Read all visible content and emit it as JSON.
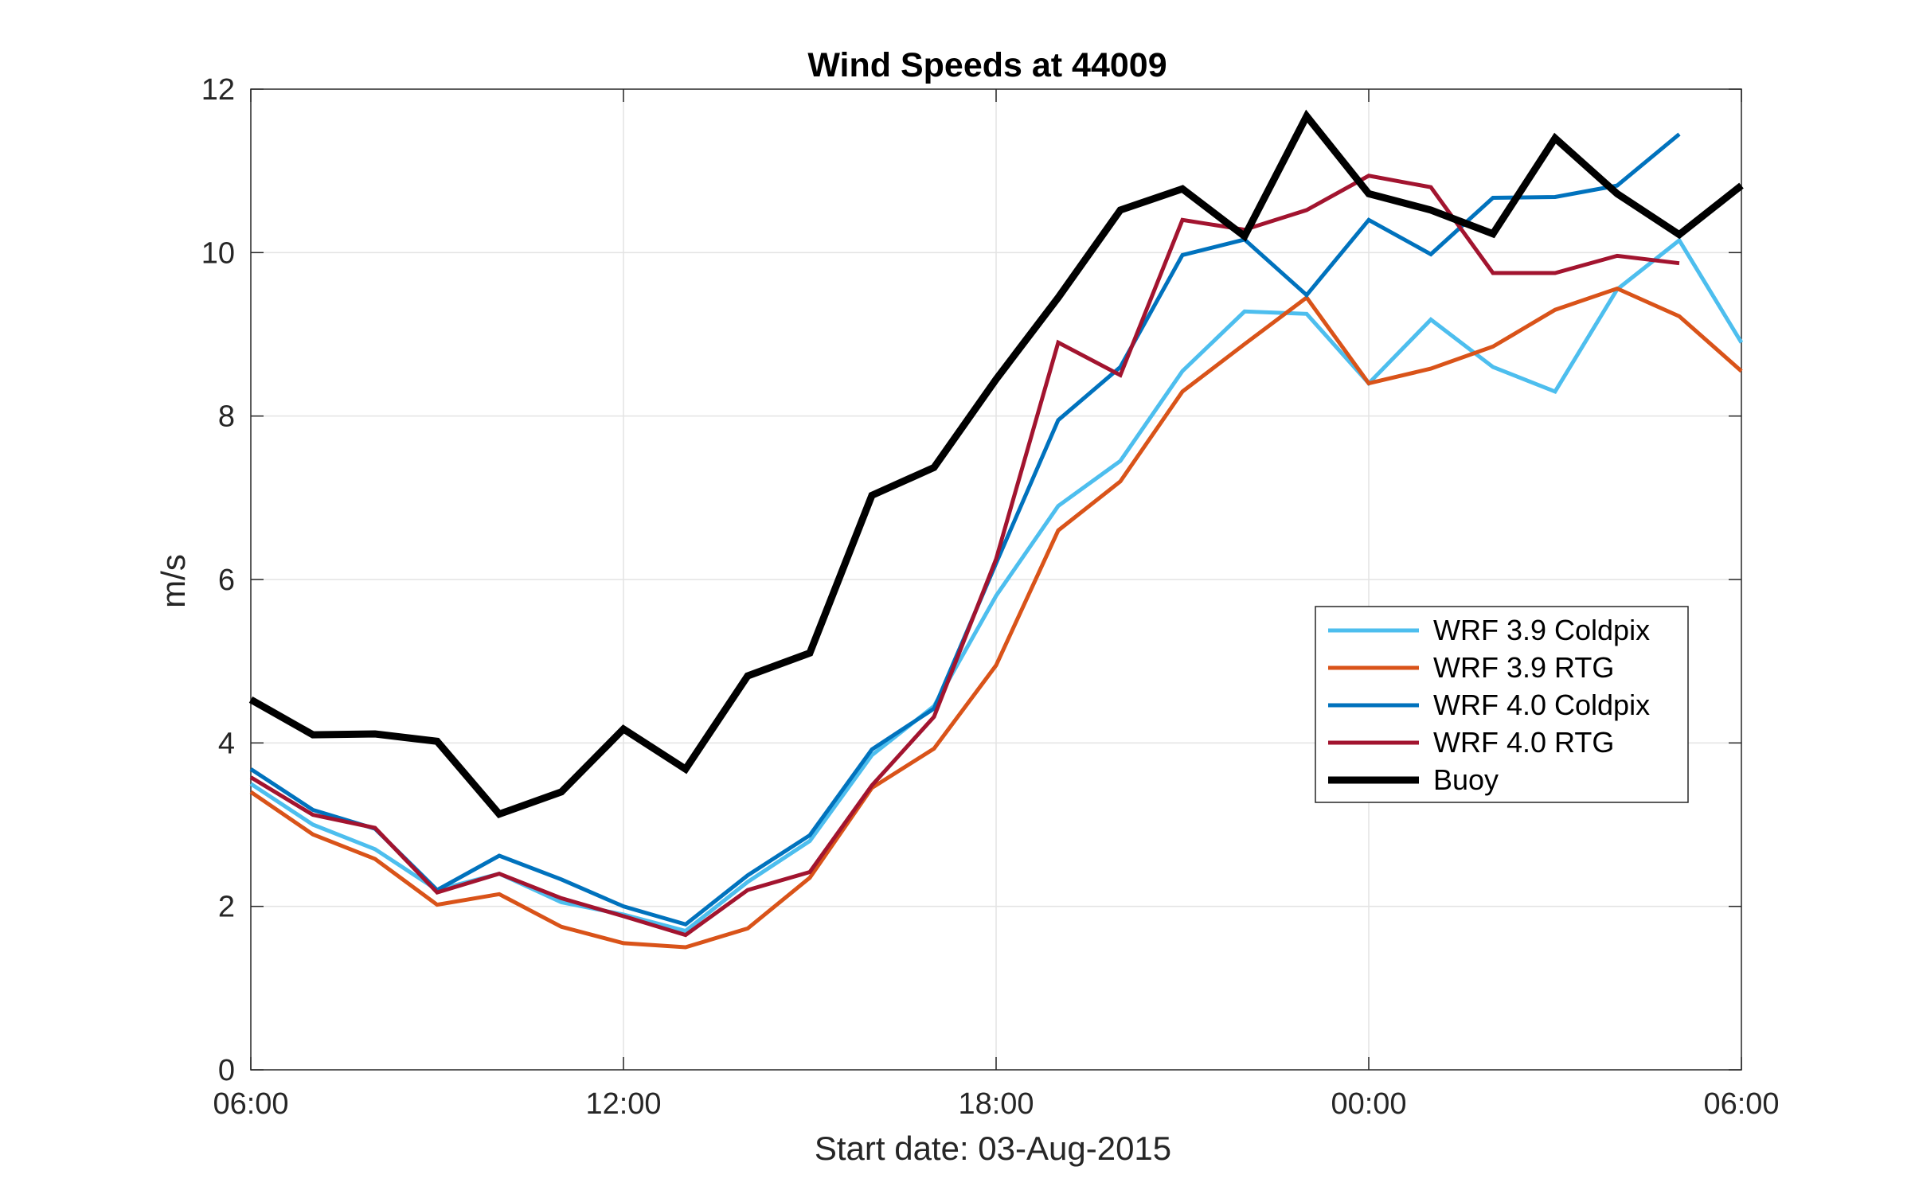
{
  "chart_data": {
    "type": "line",
    "title": "Wind Speeds at 44009",
    "xlabel": "Start date: 03-Aug-2015",
    "ylabel": "m/s",
    "x_range_hours": [
      0,
      24
    ],
    "x_ticks": [
      {
        "hour": 0,
        "label": "06:00"
      },
      {
        "hour": 6,
        "label": "12:00"
      },
      {
        "hour": 12,
        "label": "18:00"
      },
      {
        "hour": 18,
        "label": "00:00"
      },
      {
        "hour": 24,
        "label": "06:00"
      }
    ],
    "ylim": [
      0,
      12
    ],
    "y_ticks": [
      0,
      2,
      4,
      6,
      8,
      10,
      12
    ],
    "grid": true,
    "legend_position": "right-middle",
    "series": [
      {
        "name": "WRF 3.9 Coldpix",
        "color": "#4DBEEE",
        "width": 5,
        "x": [
          0,
          1,
          2,
          3,
          4,
          5,
          6,
          7,
          8,
          9,
          10,
          11,
          12,
          13,
          14,
          15,
          16,
          17,
          18,
          19,
          20,
          21,
          22,
          23,
          24
        ],
        "values": [
          3.5,
          3.0,
          2.7,
          2.2,
          2.4,
          2.05,
          1.9,
          1.7,
          2.3,
          2.8,
          3.85,
          4.45,
          5.8,
          6.9,
          7.45,
          8.55,
          9.28,
          9.25,
          8.4,
          9.18,
          8.6,
          8.3,
          9.55,
          10.15,
          8.9
        ]
      },
      {
        "name": "WRF 3.9 RTG",
        "color": "#D95319",
        "width": 5,
        "x": [
          0,
          1,
          2,
          3,
          4,
          5,
          6,
          7,
          8,
          9,
          10,
          11,
          12,
          13,
          14,
          15,
          16,
          17,
          18,
          19,
          20,
          21,
          22,
          23,
          24
        ],
        "values": [
          3.4,
          2.88,
          2.58,
          2.02,
          2.15,
          1.75,
          1.55,
          1.5,
          1.73,
          2.35,
          3.45,
          3.93,
          4.95,
          6.6,
          7.2,
          8.3,
          8.88,
          9.45,
          8.4,
          8.58,
          8.85,
          9.3,
          9.56,
          9.22,
          8.55
        ]
      },
      {
        "name": "WRF 4.0 Coldpix",
        "color": "#0072BD",
        "width": 5,
        "x": [
          0,
          1,
          2,
          3,
          4,
          5,
          6,
          7,
          8,
          9,
          10,
          11,
          12,
          13,
          14,
          15,
          16,
          17,
          18,
          19,
          20,
          21,
          22,
          23
        ],
        "values": [
          3.68,
          3.18,
          2.95,
          2.2,
          2.62,
          2.33,
          2.0,
          1.78,
          2.38,
          2.87,
          3.92,
          4.42,
          6.2,
          7.95,
          8.6,
          9.97,
          10.16,
          9.48,
          10.4,
          9.98,
          10.67,
          10.68,
          10.82,
          11.45
        ]
      },
      {
        "name": "WRF 4.0 RTG",
        "color": "#A2142F",
        "width": 5,
        "x": [
          0,
          1,
          2,
          3,
          4,
          5,
          6,
          7,
          8,
          9,
          10,
          11,
          12,
          13,
          14,
          15,
          16,
          17,
          18,
          19,
          20,
          21,
          22,
          23
        ],
        "values": [
          3.58,
          3.12,
          2.96,
          2.17,
          2.4,
          2.1,
          1.88,
          1.65,
          2.2,
          2.42,
          3.48,
          4.32,
          6.25,
          8.9,
          8.5,
          10.4,
          10.28,
          10.52,
          10.94,
          10.8,
          9.75,
          9.75,
          9.96,
          9.87
        ]
      },
      {
        "name": "Buoy",
        "color": "#000000",
        "width": 9,
        "x": [
          0,
          1,
          2,
          3,
          4,
          5,
          6,
          7,
          8,
          9,
          10,
          11,
          12,
          13,
          14,
          15,
          16,
          17,
          18,
          19,
          20,
          21,
          22,
          23,
          24
        ],
        "values": [
          4.53,
          4.1,
          4.11,
          4.02,
          3.13,
          3.4,
          4.17,
          3.68,
          4.82,
          5.1,
          7.03,
          7.37,
          8.45,
          9.45,
          10.52,
          10.78,
          10.2,
          11.67,
          10.72,
          10.52,
          10.23,
          11.4,
          10.72,
          10.22,
          10.82
        ]
      }
    ]
  }
}
